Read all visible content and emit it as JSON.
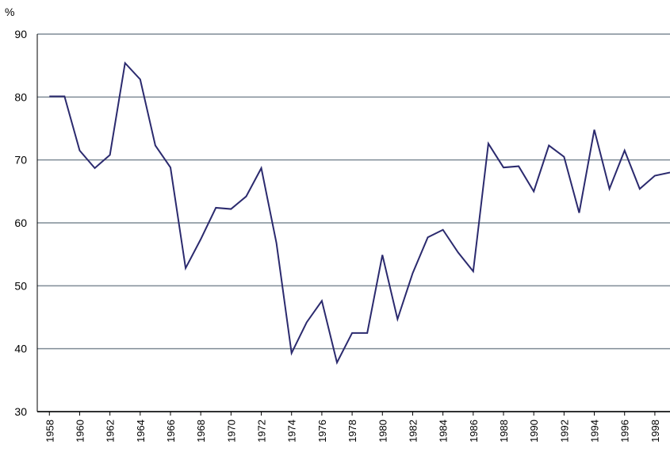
{
  "chart_data": {
    "type": "line",
    "y_label": "%",
    "x": [
      1958,
      1959,
      1960,
      1961,
      1962,
      1963,
      1964,
      1965,
      1966,
      1967,
      1968,
      1969,
      1970,
      1971,
      1972,
      1973,
      1974,
      1975,
      1976,
      1977,
      1978,
      1979,
      1980,
      1981,
      1982,
      1983,
      1984,
      1985,
      1986,
      1987,
      1988,
      1989,
      1990,
      1991,
      1992,
      1993,
      1994,
      1995,
      1996,
      1997,
      1998,
      1999
    ],
    "series": [
      {
        "color": "#2b2a6e",
        "values": [
          80.1,
          80.1,
          71.5,
          68.7,
          70.8,
          85.4,
          82.8,
          72.3,
          68.8,
          52.8,
          57.4,
          62.4,
          62.2,
          64.2,
          68.7,
          56.8,
          39.3,
          44.2,
          47.6,
          37.8,
          42.5,
          42.5,
          54.9,
          44.7,
          52.0,
          57.7,
          58.9,
          55.3,
          52.3,
          72.6,
          68.8,
          69.0,
          65.0,
          72.3,
          70.5,
          61.6,
          74.8,
          65.4,
          71.5,
          65.4,
          67.5,
          68.0
        ]
      }
    ],
    "xlim": [
      1957.2,
      1999
    ],
    "xticks": [
      1958,
      1960,
      1962,
      1964,
      1966,
      1968,
      1970,
      1972,
      1974,
      1976,
      1978,
      1980,
      1982,
      1984,
      1986,
      1988,
      1990,
      1992,
      1994,
      1996,
      1998
    ],
    "ylim": [
      30,
      90
    ],
    "yticks": [
      30,
      40,
      50,
      60,
      70,
      80,
      90
    ],
    "grid": true
  }
}
